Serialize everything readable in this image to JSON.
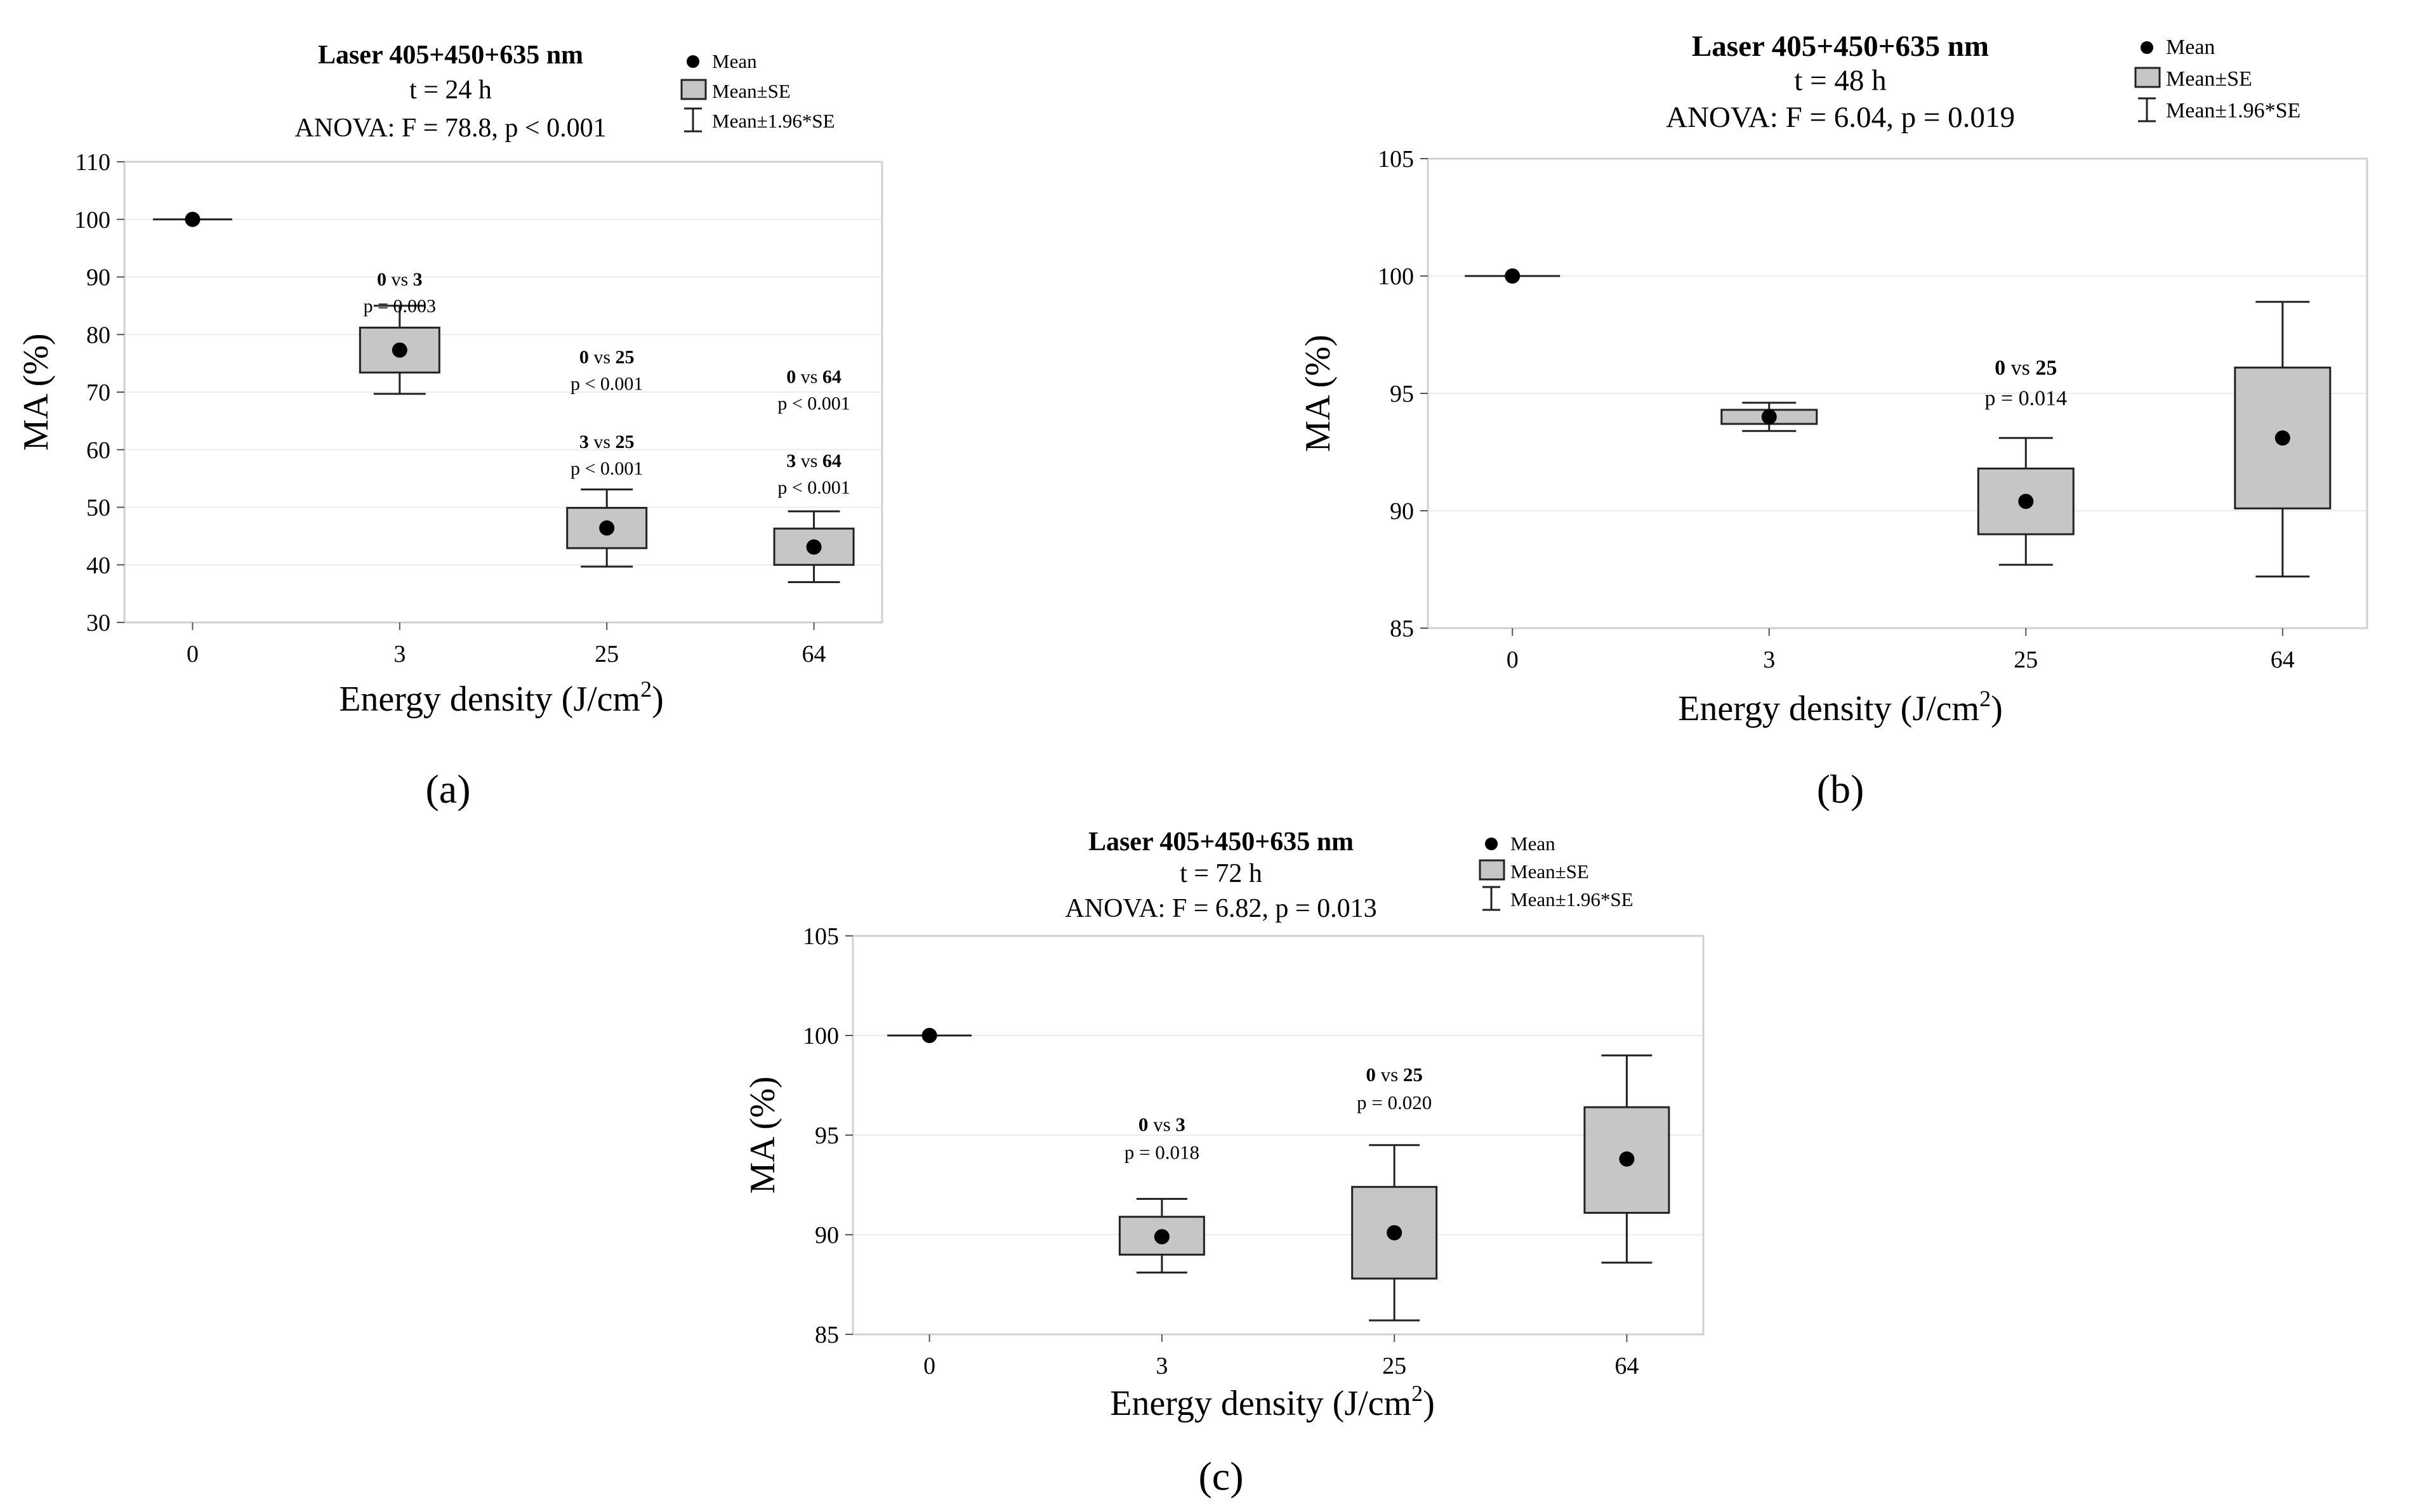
{
  "chart_data": [
    {
      "type": "box",
      "panel_label": "(a)",
      "title": "Laser 405+450+635 nm",
      "subtitle": "t = 24 h",
      "anova": "ANOVA: F = 78.8, p < 0.001",
      "legend": [
        "Mean",
        "Mean±SE",
        "Mean±1.96*SE"
      ],
      "xlabel": "Energy density (J/cm",
      "xlabel_sup": "2",
      "xlabel_end": ")",
      "ylabel": "MA (%)",
      "categories": [
        "0",
        "3",
        "25",
        "64"
      ],
      "ylim": [
        30,
        110
      ],
      "yticks": [
        "30",
        "40",
        "50",
        "60",
        "70",
        "80",
        "90",
        "100",
        "110"
      ],
      "ytick_values": [
        30,
        40,
        50,
        60,
        70,
        80,
        90,
        100,
        110
      ],
      "mean": [
        100,
        77.3,
        46.4,
        43.1
      ],
      "se_low": [
        100,
        73.4,
        42.9,
        40.0
      ],
      "se_high": [
        100,
        81.2,
        49.9,
        46.3
      ],
      "ci_low": [
        100,
        69.7,
        39.7,
        37.0
      ],
      "ci_high": [
        100,
        85.0,
        53.1,
        49.3
      ],
      "annotations": [
        {
          "col": 1,
          "y": 88.5,
          "bold_a": "0",
          "vs": " vs ",
          "bold_b": "3",
          "p": "p = 0.003"
        },
        {
          "col": 2,
          "y": 75.0,
          "bold_a": "0",
          "vs": " vs ",
          "bold_b": "25",
          "p": "p < 0.001"
        },
        {
          "col": 2,
          "y": 60.3,
          "bold_a": "3",
          "vs": " vs ",
          "bold_b": "25",
          "p": "p < 0.001"
        },
        {
          "col": 3,
          "y": 71.6,
          "bold_a": "0",
          "vs": " vs ",
          "bold_b": "64",
          "p": "p < 0.001"
        },
        {
          "col": 3,
          "y": 57.0,
          "bold_a": "3",
          "vs": " vs ",
          "bold_b": "64",
          "p": "p < 0.001"
        }
      ]
    },
    {
      "type": "box",
      "panel_label": "(b)",
      "title": "Laser 405+450+635 nm",
      "subtitle": "t = 48 h",
      "anova": "ANOVA: F = 6.04, p = 0.019",
      "legend": [
        "Mean",
        "Mean±SE",
        "Mean±1.96*SE"
      ],
      "xlabel": "Energy density (J/cm",
      "xlabel_sup": "2",
      "xlabel_end": ")",
      "ylabel": "MA (%)",
      "categories": [
        "0",
        "3",
        "25",
        "64"
      ],
      "ylim": [
        85,
        105
      ],
      "yticks": [
        "85",
        "90",
        "95",
        "100",
        "105"
      ],
      "ytick_values": [
        85,
        90,
        95,
        100,
        105
      ],
      "mean": [
        100,
        94.0,
        90.4,
        93.1
      ],
      "se_low": [
        100,
        93.7,
        89.0,
        90.1
      ],
      "se_high": [
        100,
        94.3,
        91.8,
        96.1
      ],
      "ci_low": [
        100,
        93.4,
        87.7,
        87.2
      ],
      "ci_high": [
        100,
        94.6,
        93.1,
        98.9
      ],
      "annotations": [
        {
          "col": 2,
          "y": 95.8,
          "bold_a": "0",
          "vs": " vs ",
          "bold_b": "25",
          "p": "p = 0.014"
        }
      ]
    },
    {
      "type": "box",
      "panel_label": "(c)",
      "title": "Laser 405+450+635 nm",
      "subtitle": "t = 72 h",
      "anova": "ANOVA: F = 6.82, p = 0.013",
      "legend": [
        "Mean",
        "Mean±SE",
        "Mean±1.96*SE"
      ],
      "xlabel": "Energy density (J/cm",
      "xlabel_sup": "2",
      "xlabel_end": ")",
      "ylabel": "MA (%)",
      "categories": [
        "0",
        "3",
        "25",
        "64"
      ],
      "ylim": [
        85,
        105
      ],
      "yticks": [
        "85",
        "90",
        "95",
        "100",
        "105"
      ],
      "ytick_values": [
        85,
        90,
        95,
        100,
        105
      ],
      "mean": [
        100,
        89.9,
        90.1,
        93.8
      ],
      "se_low": [
        100,
        89.0,
        87.8,
        91.1
      ],
      "se_high": [
        100,
        90.9,
        92.4,
        96.4
      ],
      "ci_low": [
        100,
        88.1,
        85.7,
        88.6
      ],
      "ci_high": [
        100,
        91.8,
        94.5,
        99.0
      ],
      "annotations": [
        {
          "col": 1,
          "y": 95.2,
          "bold_a": "0",
          "vs": " vs ",
          "bold_b": "3",
          "p": "p = 0.018"
        },
        {
          "col": 2,
          "y": 97.7,
          "bold_a": "0",
          "vs": " vs ",
          "bold_b": "25",
          "p": "p = 0.020"
        }
      ]
    }
  ]
}
